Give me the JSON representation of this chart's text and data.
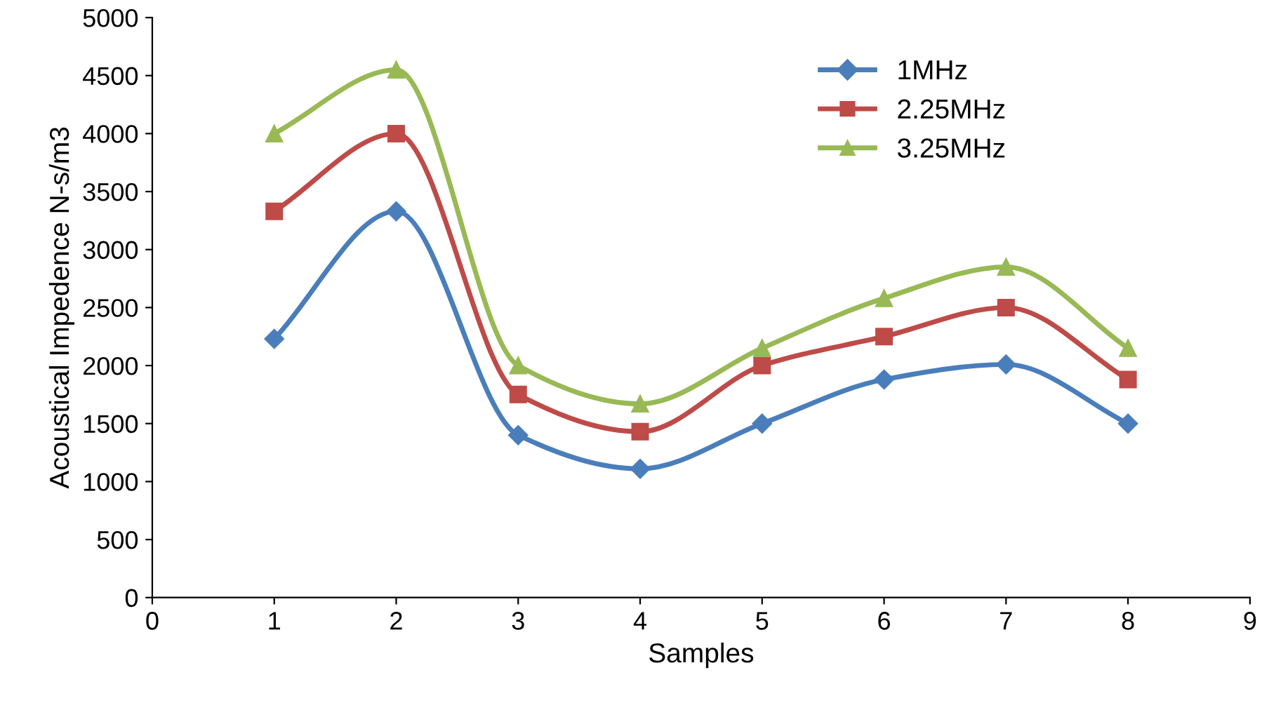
{
  "chart_data": {
    "type": "line",
    "xlabel": "Samples",
    "ylabel": "Acoustical Impedence N-s/m3",
    "x": [
      1,
      2,
      3,
      4,
      5,
      6,
      7,
      8
    ],
    "series": [
      {
        "name": "1MHz",
        "color": "#4a7ebb",
        "marker": "diamond",
        "values": [
          2230,
          3330,
          1400,
          1110,
          1500,
          1880,
          2010,
          1500
        ]
      },
      {
        "name": "2.25MHz",
        "color": "#be4b48",
        "marker": "square",
        "values": [
          3330,
          4000,
          1750,
          1430,
          2000,
          2250,
          2500,
          1880
        ]
      },
      {
        "name": "3.25MHz",
        "color": "#98b954",
        "marker": "triangle",
        "values": [
          4000,
          4550,
          2000,
          1670,
          2150,
          2580,
          2850,
          2150
        ]
      }
    ],
    "xlim": [
      0,
      9
    ],
    "xticks": [
      0,
      1,
      2,
      3,
      4,
      5,
      6,
      7,
      8,
      9
    ],
    "ylim": [
      0,
      5000
    ],
    "yticks": [
      0,
      500,
      1000,
      1500,
      2000,
      2500,
      3000,
      3500,
      4000,
      4500,
      5000
    ],
    "grid": false,
    "legend": "top right",
    "line_style": "solid"
  }
}
